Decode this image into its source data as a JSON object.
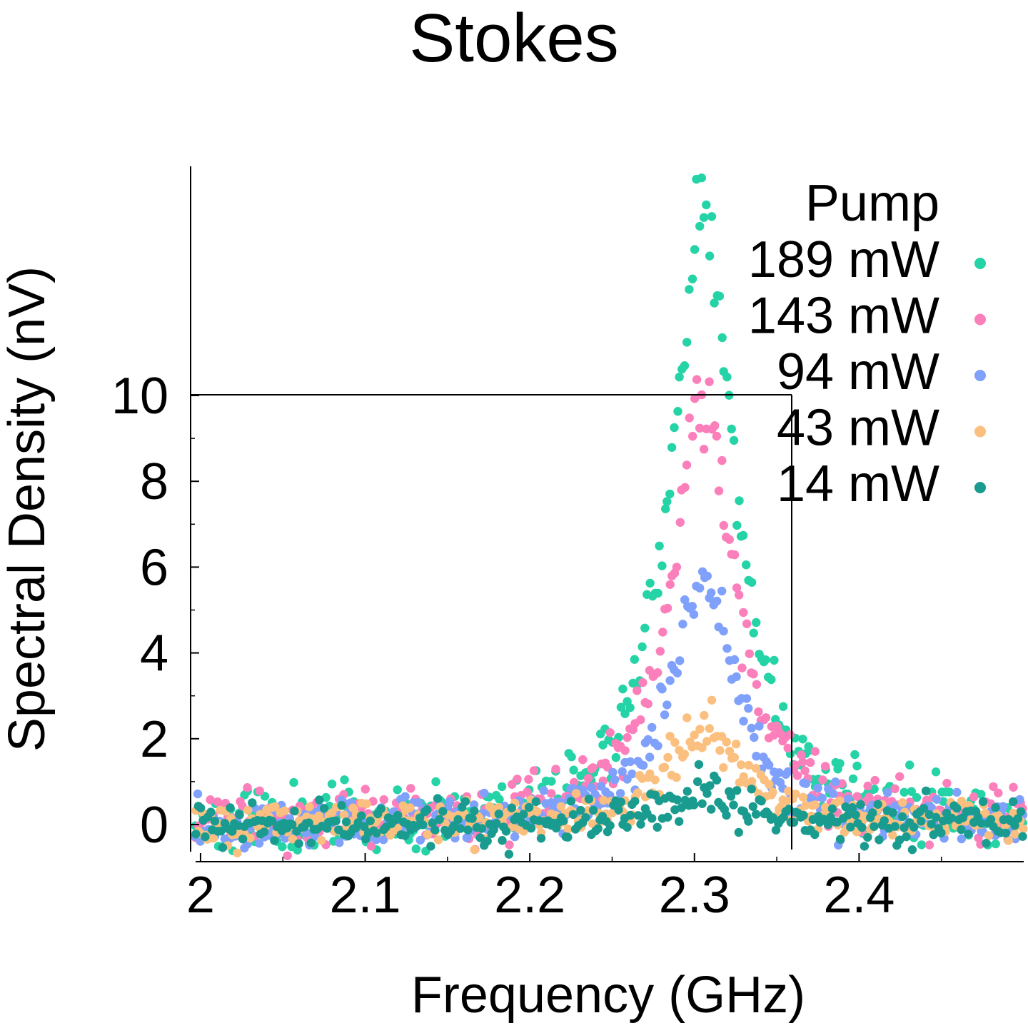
{
  "chart_data": {
    "type": "scatter",
    "title": "Stokes",
    "xlabel": "Frequency (GHz)",
    "ylabel": "Spectral Density (nV)",
    "xlim": [
      1.997,
      2.5
    ],
    "ylim": [
      -0.9,
      15.2
    ],
    "x_ticks": [
      2,
      2.1,
      2.2,
      2.3,
      2.4
    ],
    "x_tick_labels": [
      "2",
      "2.1",
      "2.2",
      "2.3",
      "2.4"
    ],
    "y_ticks": [
      0,
      2,
      4,
      6,
      8,
      10
    ],
    "y_tick_labels": [
      "0",
      "2",
      "4",
      "6",
      "8",
      "10"
    ],
    "grid": false,
    "legend_title": "Pump",
    "legend_position": "top-right",
    "center_frequency": 2.305,
    "x_step": 0.0015,
    "series": [
      {
        "name": "189 mW",
        "color": "#24d3a6",
        "peak": 14.3,
        "linewidth": 0.045,
        "noise": 0.42,
        "seed": 11
      },
      {
        "name": "143 mW",
        "color": "#fb7fbb",
        "peak": 10.0,
        "linewidth": 0.045,
        "noise": 0.34,
        "seed": 23
      },
      {
        "name": "94 mW",
        "color": "#7fa0fb",
        "peak": 5.7,
        "linewidth": 0.045,
        "noise": 0.26,
        "seed": 37
      },
      {
        "name": "43 mW",
        "color": "#fbc07f",
        "peak": 2.3,
        "linewidth": 0.05,
        "noise": 0.18,
        "seed": 51
      },
      {
        "name": "14 mW",
        "color": "#1a9b8f",
        "peak": 0.6,
        "linewidth": 0.05,
        "noise": 0.17,
        "seed": 67
      }
    ]
  }
}
